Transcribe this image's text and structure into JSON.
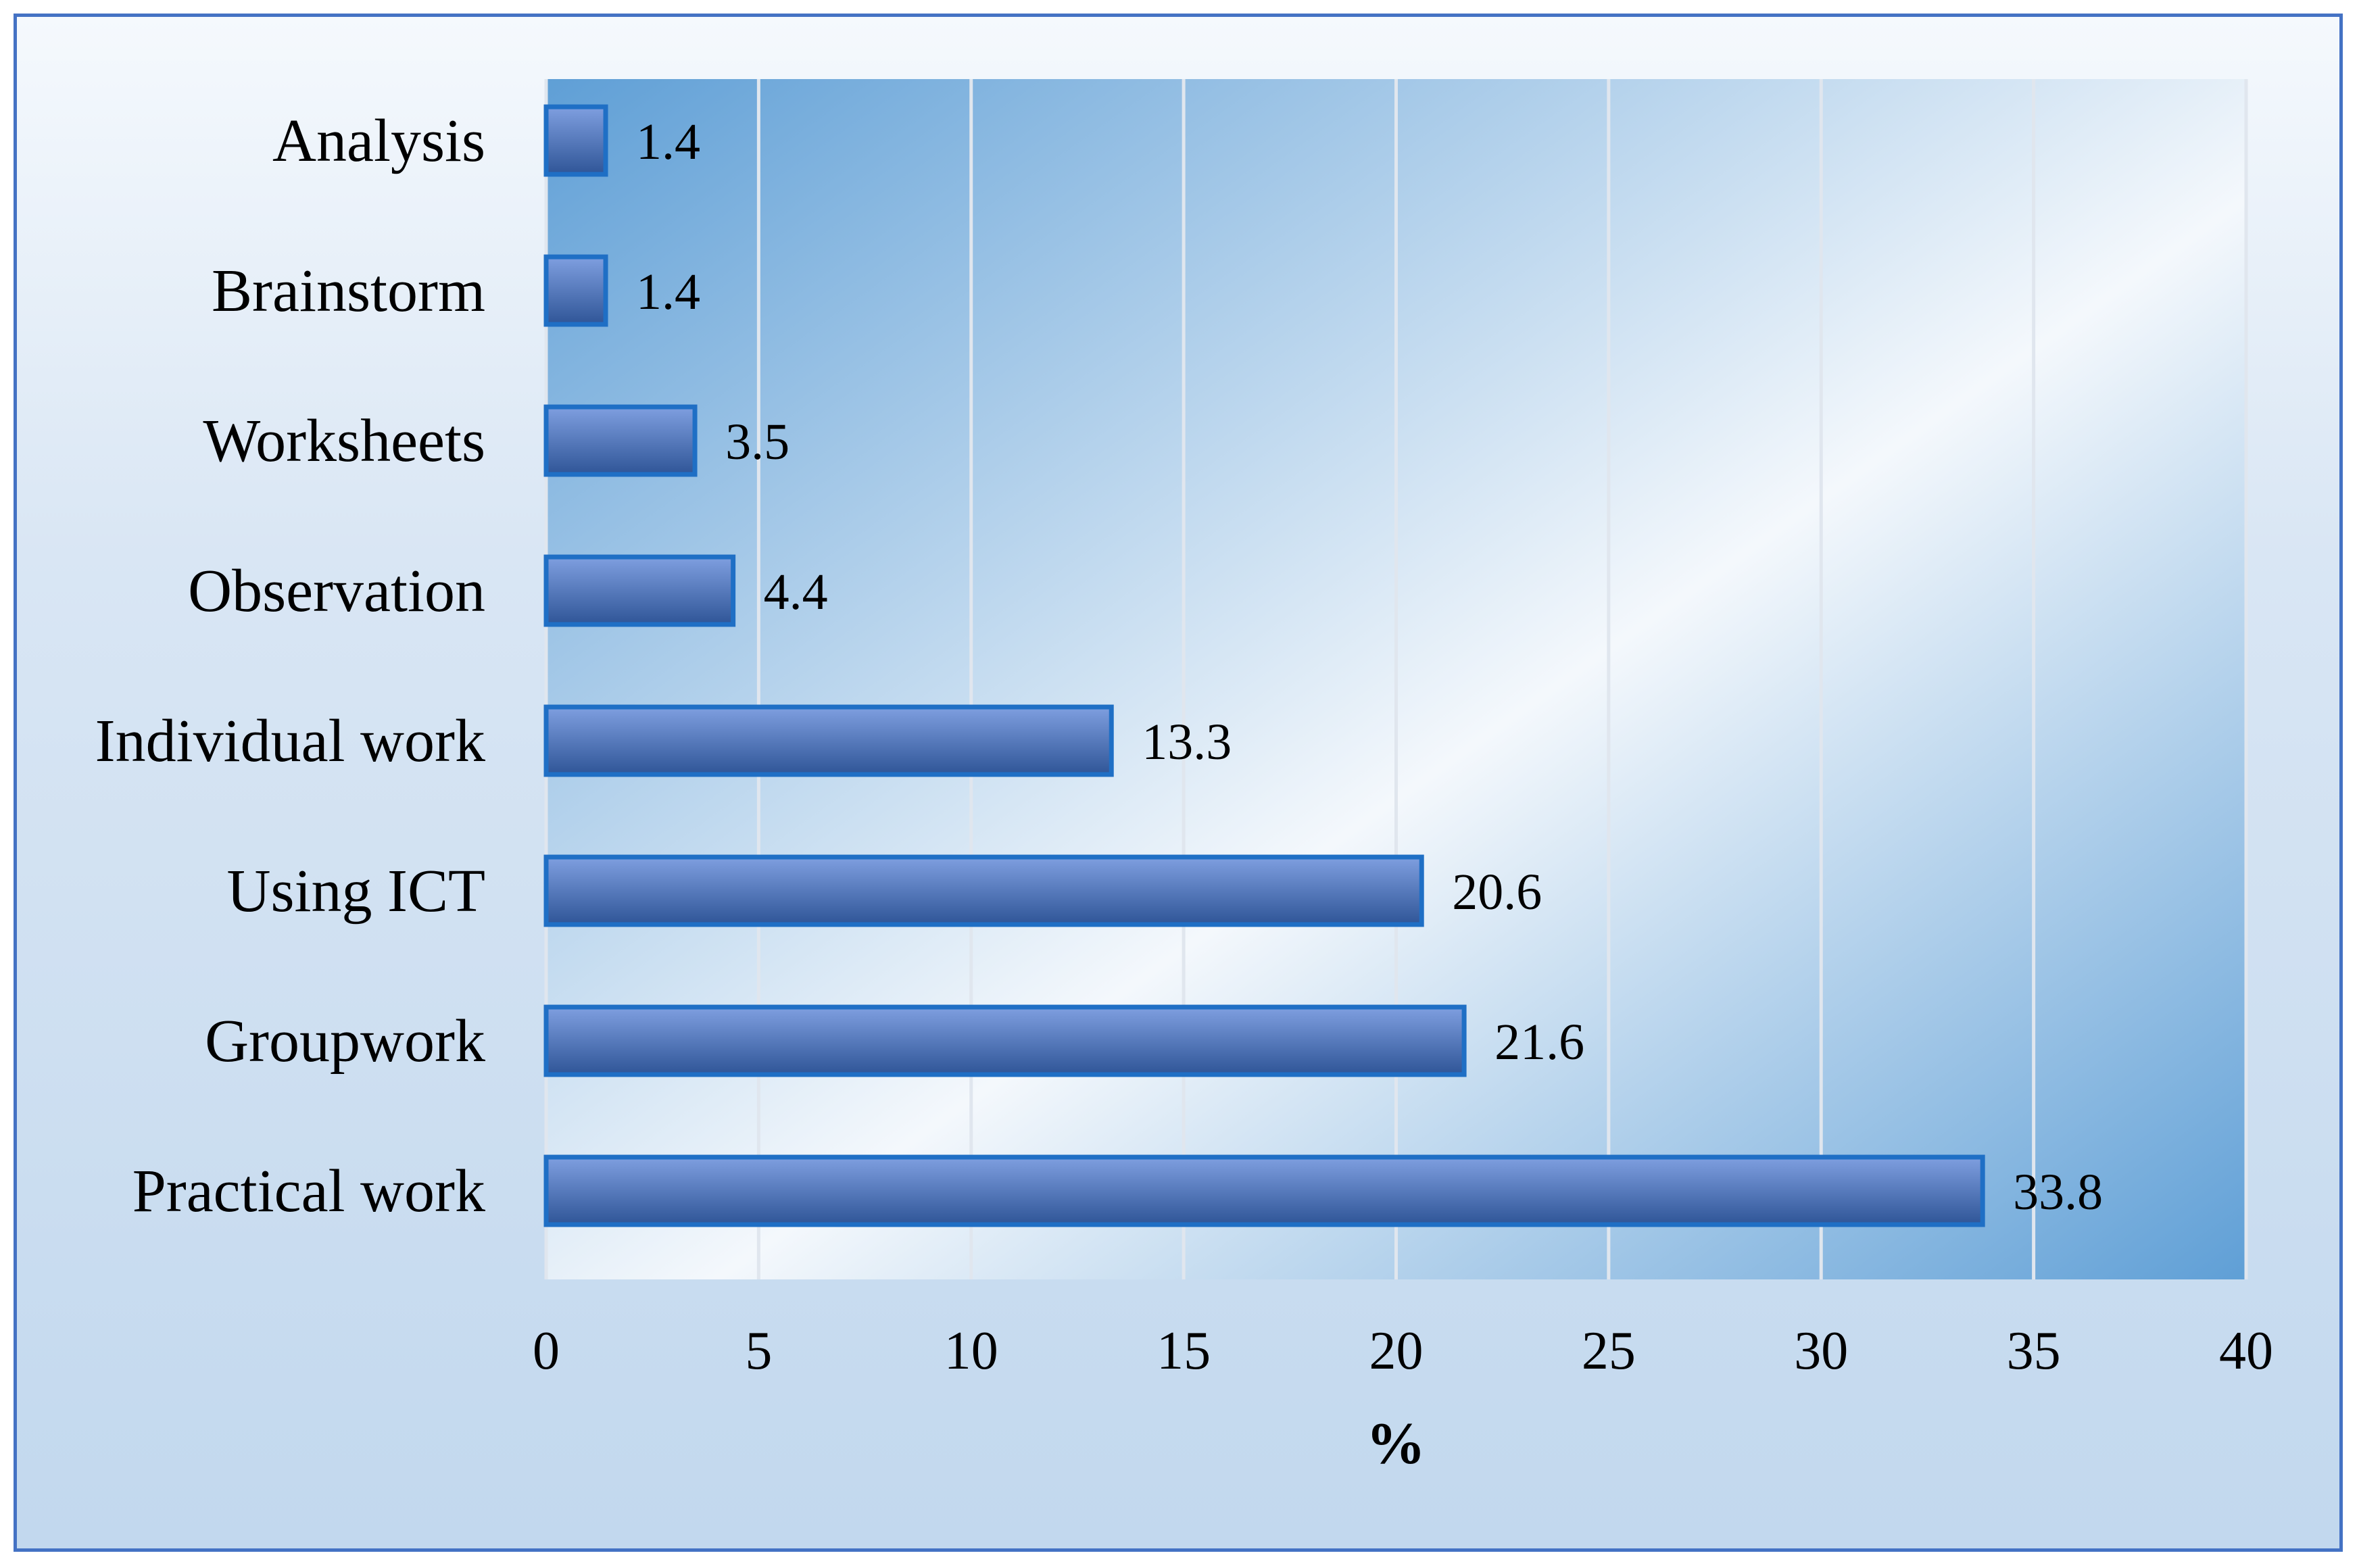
{
  "colors": {
    "frame_border": "#4472c4",
    "bar_fill_top": "#7f9fe0",
    "bar_fill_bottom": "#2f5597",
    "bar_stroke": "#1f6fc5",
    "plot_light": "#f4f8fc",
    "plot_dark": "#5f9fd6",
    "gridline": "#e0e6ee"
  },
  "chart_data": {
    "type": "bar",
    "orientation": "horizontal",
    "categories": [
      "Analysis",
      "Brainstorm",
      "Worksheets",
      "Observation",
      "Individual work",
      "Using ICT",
      "Groupwork",
      "Practical work"
    ],
    "values": [
      1.4,
      1.4,
      3.5,
      4.4,
      13.3,
      20.6,
      21.6,
      33.8
    ],
    "xlabel": "%",
    "ylabel": "",
    "xlim": [
      0,
      40
    ],
    "xticks": [
      0,
      5,
      10,
      15,
      20,
      25,
      30,
      35,
      40
    ],
    "grid": "vertical",
    "legend": "none",
    "data_labels": true
  }
}
